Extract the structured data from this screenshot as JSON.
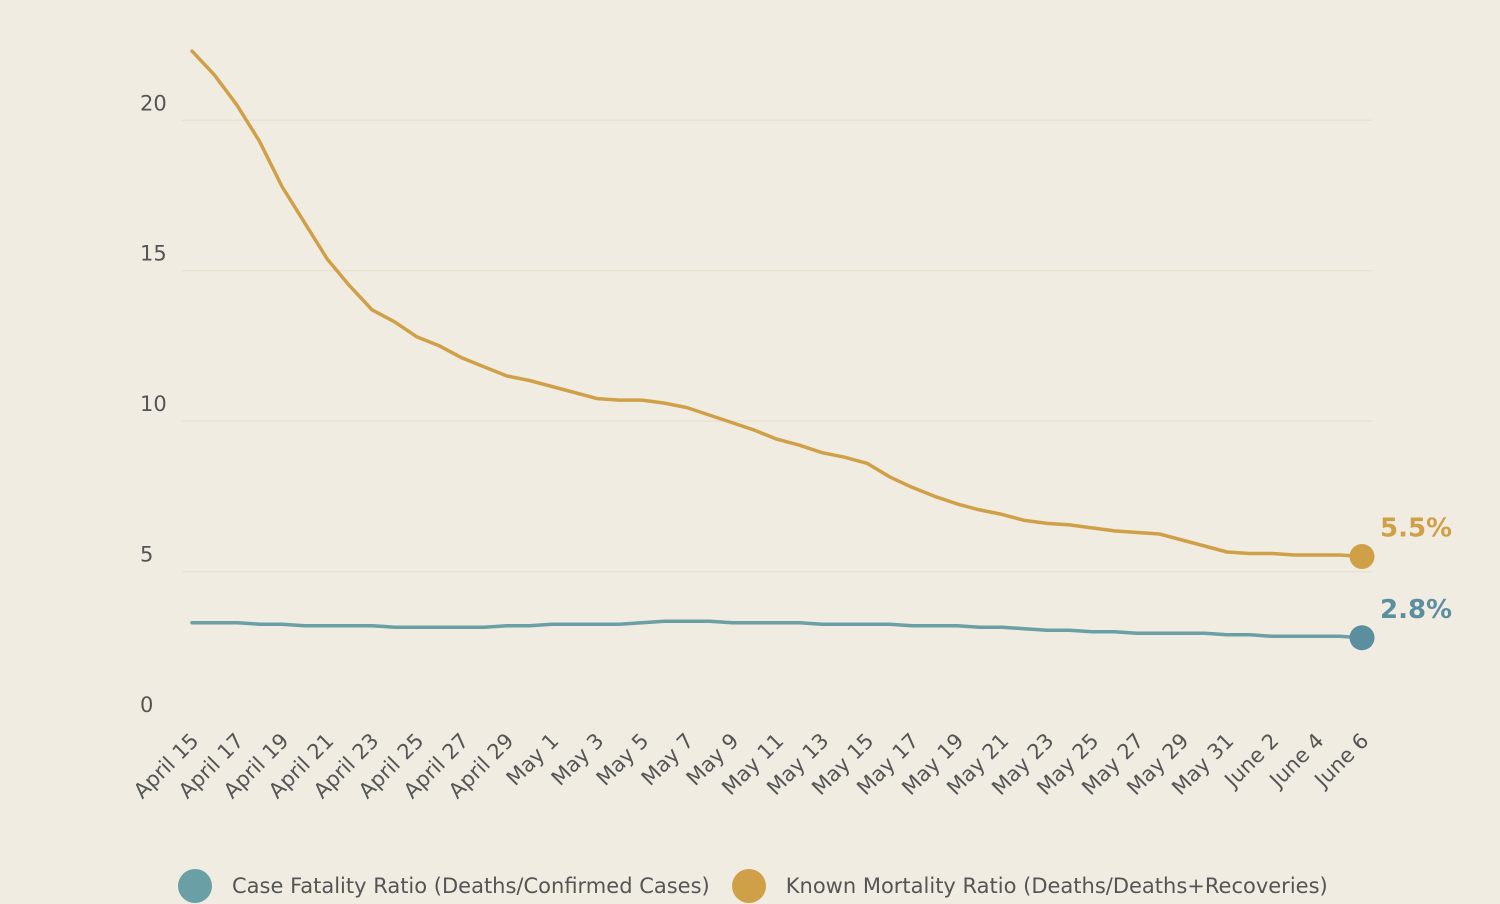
{
  "chart_data": {
    "type": "line",
    "title": "",
    "xlabel": "",
    "ylabel": "",
    "ylim": [
      0,
      23
    ],
    "y_ticks": [
      "0",
      "5",
      "10",
      "15",
      "20"
    ],
    "grid": "horizontal",
    "x_tick_labels": [
      "April 15",
      "April 17",
      "April 19",
      "April 21",
      "April 23",
      "April 25",
      "April 27",
      "April 29",
      "May 1",
      "May 3",
      "May 5",
      "May 7",
      "May 9",
      "May 11",
      "May 13",
      "May 15",
      "May 17",
      "May 19",
      "May 21",
      "May 23",
      "May 25",
      "May 27",
      "May 29",
      "May 31",
      "June 2",
      "June 4",
      "June 6"
    ],
    "x": [
      "April 15",
      "April 16",
      "April 17",
      "April 18",
      "April 19",
      "April 20",
      "April 21",
      "April 22",
      "April 23",
      "April 24",
      "April 25",
      "April 26",
      "April 27",
      "April 28",
      "April 29",
      "April 30",
      "May 1",
      "May 2",
      "May 3",
      "May 4",
      "May 5",
      "May 6",
      "May 7",
      "May 8",
      "May 9",
      "May 10",
      "May 11",
      "May 12",
      "May 13",
      "May 14",
      "May 15",
      "May 16",
      "May 17",
      "May 18",
      "May 19",
      "May 20",
      "May 21",
      "May 22",
      "May 23",
      "May 24",
      "May 25",
      "May 26",
      "May 27",
      "May 28",
      "May 29",
      "May 30",
      "May 31",
      "June 1",
      "June 2",
      "June 3",
      "June 4",
      "June 5",
      "June 6"
    ],
    "series": [
      {
        "name": "Case Fatality Ratio (Deaths/Confirmed Cases)",
        "color": "#6a9fa5",
        "end_label": "2.8%",
        "end_color": "#5b8fa0",
        "values": [
          3.3,
          3.3,
          3.3,
          3.25,
          3.25,
          3.2,
          3.2,
          3.2,
          3.2,
          3.15,
          3.15,
          3.15,
          3.15,
          3.15,
          3.2,
          3.2,
          3.25,
          3.25,
          3.25,
          3.25,
          3.3,
          3.35,
          3.35,
          3.35,
          3.3,
          3.3,
          3.3,
          3.3,
          3.25,
          3.25,
          3.25,
          3.25,
          3.2,
          3.2,
          3.2,
          3.15,
          3.15,
          3.1,
          3.05,
          3.05,
          3.0,
          3.0,
          2.95,
          2.95,
          2.95,
          2.95,
          2.9,
          2.9,
          2.85,
          2.85,
          2.85,
          2.85,
          2.8
        ]
      },
      {
        "name": "Known Mortality Ratio (Deaths/Deaths+Recoveries)",
        "color": "#d0a048",
        "end_label": "5.5%",
        "end_color": "#d0a048",
        "values": [
          22.3,
          21.5,
          20.5,
          19.3,
          17.8,
          16.6,
          15.4,
          14.5,
          13.7,
          13.3,
          12.8,
          12.5,
          12.1,
          11.8,
          11.5,
          11.35,
          11.15,
          10.95,
          10.75,
          10.7,
          10.7,
          10.6,
          10.45,
          10.2,
          9.95,
          9.7,
          9.4,
          9.2,
          8.95,
          8.8,
          8.6,
          8.15,
          7.8,
          7.5,
          7.25,
          7.05,
          6.9,
          6.7,
          6.6,
          6.55,
          6.45,
          6.35,
          6.3,
          6.25,
          6.05,
          5.85,
          5.65,
          5.6,
          5.6,
          5.55,
          5.55,
          5.55,
          5.5
        ]
      }
    ],
    "legend": "bottom-left"
  }
}
